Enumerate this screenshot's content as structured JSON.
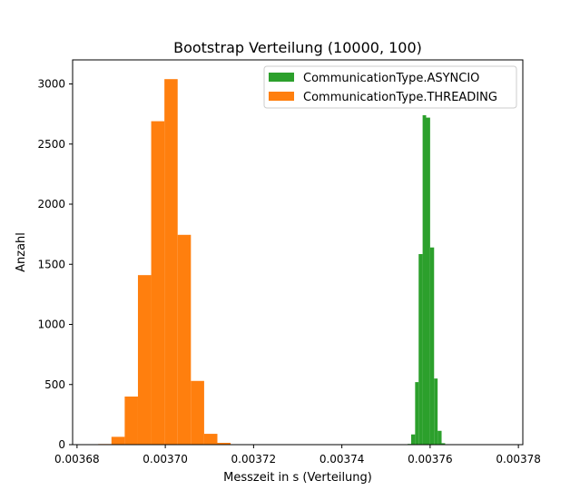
{
  "chart_data": {
    "type": "bar",
    "title": "Bootstrap Verteilung (10000, 100)",
    "xlabel": "Messzeit in s (Verteilung)",
    "ylabel": "Anzahl",
    "xlim": [
      0.003679,
      0.003781
    ],
    "ylim": [
      0,
      3200
    ],
    "xticks": [
      0.00368,
      0.0037,
      0.00372,
      0.00374,
      0.00376,
      0.00378
    ],
    "xtick_labels": [
      "0.00368",
      "0.00370",
      "0.00372",
      "0.00374",
      "0.00376",
      "0.00378"
    ],
    "yticks": [
      0,
      500,
      1000,
      1500,
      2000,
      2500,
      3000
    ],
    "ytick_labels": [
      "0",
      "500",
      "1000",
      "1500",
      "2000",
      "2500",
      "3000"
    ],
    "grid": false,
    "legend_position": "top-right",
    "series": [
      {
        "name": "CommunicationType.ASYNCIO",
        "color": "#2ca02c",
        "bin_edges": [
          0.0037549,
          0.0037557,
          0.0037566,
          0.0037574,
          0.0037583,
          0.0037591,
          0.00376,
          0.0037609,
          0.0037617,
          0.0037626,
          0.0037634,
          0.0037643
        ],
        "counts": [
          6,
          85,
          520,
          1585,
          2740,
          2720,
          1640,
          550,
          115,
          12,
          2
        ]
      },
      {
        "name": "CommunicationType.THREADING",
        "color": "#ff7f0e",
        "bin_edges": [
          0.0036848,
          0.0036878,
          0.0036908,
          0.0036938,
          0.0036968,
          0.0036998,
          0.0037028,
          0.0037058,
          0.0037088,
          0.0037118,
          0.0037148,
          0.0037178
        ],
        "counts": [
          5,
          65,
          400,
          1410,
          2690,
          3040,
          1745,
          530,
          90,
          15,
          2
        ]
      }
    ]
  }
}
